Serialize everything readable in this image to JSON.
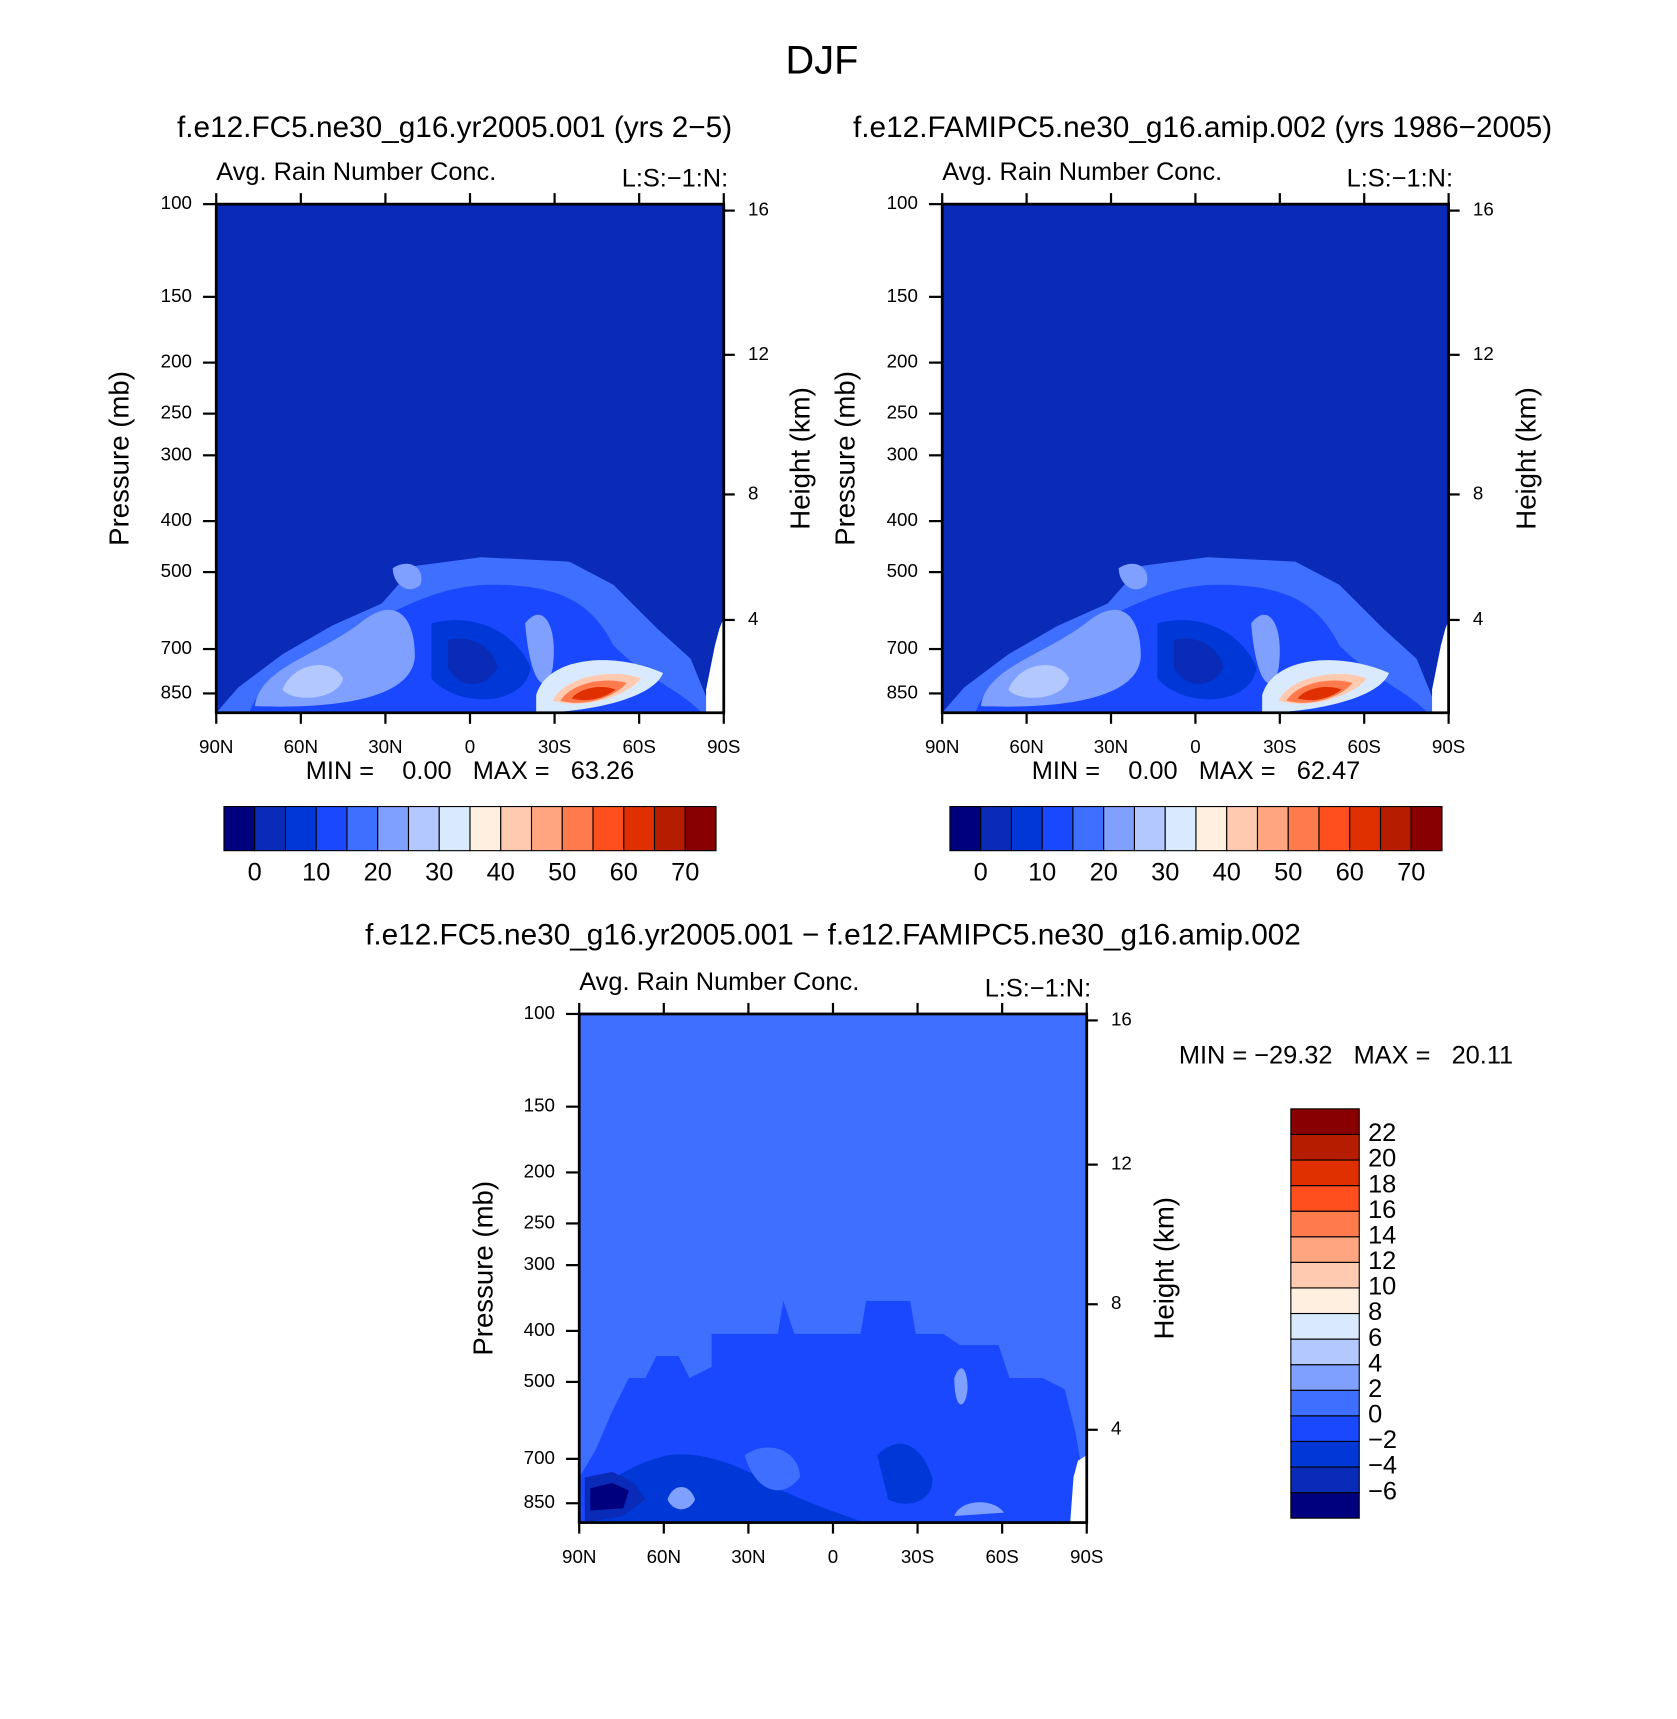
{
  "title": "DJF",
  "chart_data": [
    {
      "type": "contour",
      "title": "f.e12.FC5.ne30_g16.yr2005.001 (yrs 2−5)",
      "left_subtitle": "Avg. Rain Number Conc.",
      "right_subtitle": "L:S:−1:N:",
      "ylabel": "Pressure (mb)",
      "y2label": "Height (km)",
      "ylim": [
        925,
        100
      ],
      "ylog": true,
      "yticks": [
        100,
        150,
        200,
        250,
        300,
        400,
        500,
        700,
        850
      ],
      "y2ticks": [
        4,
        8,
        12,
        16
      ],
      "xlim": [
        90,
        -90
      ],
      "xticks": [
        {
          "value": 90,
          "label": "90N"
        },
        {
          "value": 60,
          "label": "60N"
        },
        {
          "value": 30,
          "label": "30N"
        },
        0,
        {
          "value": -30,
          "label": "30S"
        },
        {
          "value": -60,
          "label": "60S"
        },
        {
          "value": -90,
          "label": "90S"
        }
      ],
      "stats": "MIN =    0.00   MAX =   63.26",
      "fill": "#0a2ab8",
      "colorbar": {
        "orientation": "horizontal",
        "levels": [
          0,
          5,
          10,
          15,
          20,
          25,
          30,
          35,
          40,
          45,
          50,
          55,
          60,
          65,
          70
        ],
        "ticks": [
          0,
          10,
          20,
          30,
          40,
          50,
          60,
          70
        ],
        "colors": [
          "#00007f",
          "#0a2ab8",
          "#0038d8",
          "#1a48ff",
          "#3f6fff",
          "#80a0ff",
          "#b3c8ff",
          "#d9eaff",
          "#ffefe0",
          "#ffcab0",
          "#ffa580",
          "#ff7a4d",
          "#ff4f1f",
          "#e03000",
          "#b51c00",
          "#880000"
        ]
      }
    },
    {
      "type": "contour",
      "title": "f.e12.FAMIPC5.ne30_g16.amip.002 (yrs 1986−2005)",
      "left_subtitle": "Avg. Rain Number Conc.",
      "right_subtitle": "L:S:−1:N:",
      "ylabel": "Pressure (mb)",
      "y2label": "Height (km)",
      "ylim": [
        925,
        100
      ],
      "ylog": true,
      "yticks": [
        100,
        150,
        200,
        250,
        300,
        400,
        500,
        700,
        850
      ],
      "y2ticks": [
        4,
        8,
        12,
        16
      ],
      "xlim": [
        90,
        -90
      ],
      "xticks": [
        {
          "value": 90,
          "label": "90N"
        },
        {
          "value": 60,
          "label": "60N"
        },
        {
          "value": 30,
          "label": "30N"
        },
        0,
        {
          "value": -30,
          "label": "30S"
        },
        {
          "value": -60,
          "label": "60S"
        },
        {
          "value": -90,
          "label": "90S"
        }
      ],
      "stats": "MIN =    0.00   MAX =   62.47",
      "fill": "#0a2ab8",
      "colorbar": {
        "orientation": "horizontal",
        "levels": [
          0,
          5,
          10,
          15,
          20,
          25,
          30,
          35,
          40,
          45,
          50,
          55,
          60,
          65,
          70
        ],
        "ticks": [
          0,
          10,
          20,
          30,
          40,
          50,
          60,
          70
        ],
        "colors": [
          "#00007f",
          "#0a2ab8",
          "#0038d8",
          "#1a48ff",
          "#3f6fff",
          "#80a0ff",
          "#b3c8ff",
          "#d9eaff",
          "#ffefe0",
          "#ffcab0",
          "#ffa580",
          "#ff7a4d",
          "#ff4f1f",
          "#e03000",
          "#b51c00",
          "#880000"
        ]
      }
    },
    {
      "type": "contour",
      "title": "f.e12.FC5.ne30_g16.yr2005.001 − f.e12.FAMIPC5.ne30_g16.amip.002",
      "left_subtitle": "Avg. Rain Number Conc.",
      "right_subtitle": "L:S:−1:N:",
      "ylabel": "Pressure (mb)",
      "y2label": "Height (km)",
      "ylim": [
        925,
        100
      ],
      "ylog": true,
      "yticks": [
        100,
        150,
        200,
        250,
        300,
        400,
        500,
        700,
        850
      ],
      "y2ticks": [
        4,
        8,
        12,
        16
      ],
      "xlim": [
        90,
        -90
      ],
      "xticks": [
        {
          "value": 90,
          "label": "90N"
        },
        {
          "value": 60,
          "label": "60N"
        },
        {
          "value": 30,
          "label": "30N"
        },
        0,
        {
          "value": -30,
          "label": "30S"
        },
        {
          "value": -60,
          "label": "60S"
        },
        {
          "value": -90,
          "label": "90S"
        }
      ],
      "stats": "MIN = −29.32   MAX =   20.11",
      "fill": "#3f6fff",
      "colorbar": {
        "orientation": "vertical",
        "levels": [
          {
            "value": -6,
            "label": "−6"
          },
          {
            "value": -4,
            "label": "−4"
          },
          {
            "value": -2,
            "label": "−2"
          },
          0,
          2,
          4,
          6,
          8,
          10,
          12,
          14,
          16,
          18,
          20,
          22
        ],
        "colors": [
          "#00007f",
          "#0a2ab8",
          "#0038d8",
          "#1a48ff",
          "#3f6fff",
          "#80a0ff",
          "#b3c8ff",
          "#d9eaff",
          "#ffefe0",
          "#ffcab0",
          "#ffa580",
          "#ff7a4d",
          "#ff4f1f",
          "#e03000",
          "#b51c00",
          "#880000"
        ]
      }
    }
  ]
}
